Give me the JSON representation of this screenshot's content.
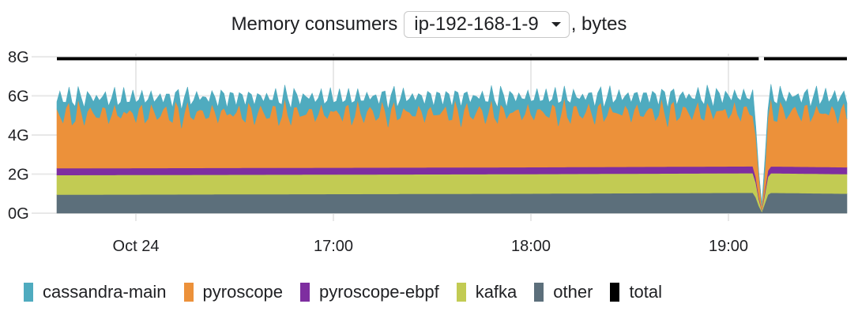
{
  "title": {
    "lead": "Memory consumers",
    "selector_value": "ip-192-168-1-9",
    "trail": ", bytes"
  },
  "chart_data": {
    "type": "area",
    "stacked": true,
    "y_ticks": [
      "0G",
      "2G",
      "4G",
      "6G",
      "8G"
    ],
    "y_tick_values": [
      0,
      2,
      4,
      6,
      8
    ],
    "ylim": [
      0,
      8.4
    ],
    "y_unit": "GB",
    "x_ticks": [
      "Oct 24",
      "17:00",
      "18:00",
      "19:00"
    ],
    "x_tick_values": [
      0,
      60,
      120,
      180
    ],
    "xlim": [
      -24,
      216
    ],
    "x_unit": "minutes since 16:00",
    "grid": true,
    "legend_position": "bottom-left",
    "series": [
      {
        "name": "other",
        "color": "#5c6f7b",
        "level_points": [
          [
            -24,
            0.95
          ],
          [
            115,
            1.0
          ],
          [
            190,
            1.05
          ],
          [
            216,
            1.0
          ]
        ],
        "gap_at": 190
      },
      {
        "name": "kafka",
        "color": "#c2cb53",
        "level_points": [
          [
            -24,
            1.0
          ],
          [
            216,
            1.0
          ]
        ],
        "gap_at": 190
      },
      {
        "name": "pyroscope-ebpf",
        "color": "#7e2ea0",
        "level_points": [
          [
            -24,
            0.35
          ],
          [
            216,
            0.35
          ]
        ],
        "gap_at": 190
      },
      {
        "name": "pyroscope",
        "color": "#ec913a",
        "level_points": [
          [
            -24,
            2.8
          ],
          [
            216,
            2.8
          ]
        ],
        "oscillation_amplitude": 0.8,
        "gap_at": 190
      },
      {
        "name": "cassandra-main",
        "color": "#4fabbf",
        "level_points": [
          [
            -24,
            0.8
          ],
          [
            216,
            0.8
          ]
        ],
        "oscillation_amplitude": 0.6,
        "gap_at": 190
      },
      {
        "name": "total",
        "color": "#000000",
        "value": 7.9,
        "gap_at": 190
      }
    ]
  },
  "legend": [
    {
      "label": "cassandra-main",
      "color": "#4fabbf"
    },
    {
      "label": "pyroscope",
      "color": "#ec913a"
    },
    {
      "label": "pyroscope-ebpf",
      "color": "#7e2ea0"
    },
    {
      "label": "kafka",
      "color": "#c2cb53"
    },
    {
      "label": "other",
      "color": "#5c6f7b"
    },
    {
      "label": "total",
      "color": "#000000"
    }
  ]
}
